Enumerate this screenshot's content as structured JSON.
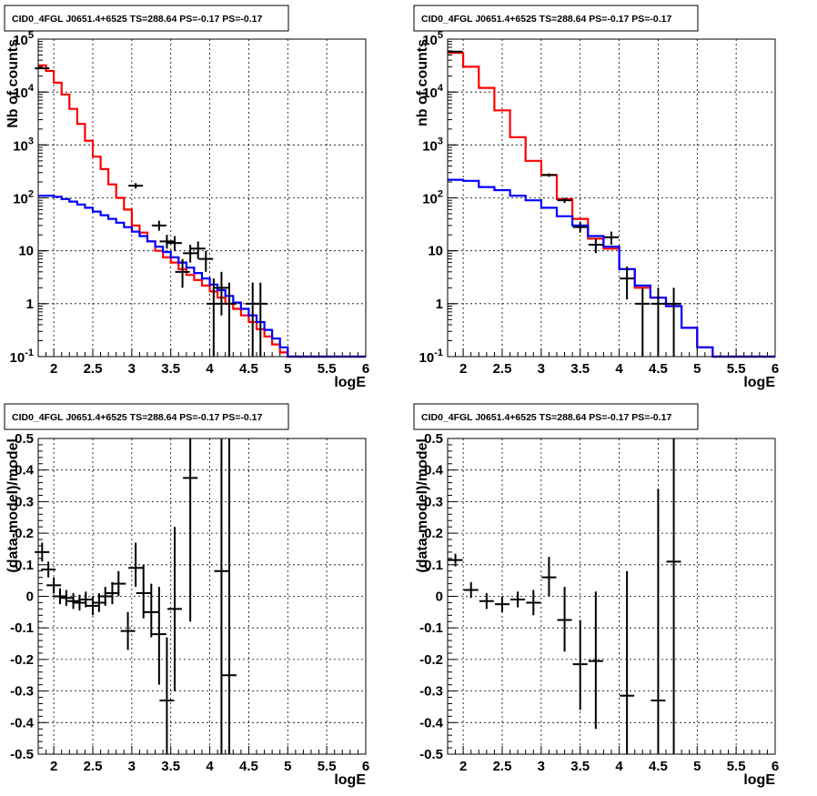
{
  "chart_data": [
    {
      "type": "line",
      "title": "CID0_4FGL J0651.4+6525 TS=288.64 PS=-0.17 PS=-0.17",
      "xlabel": "logE",
      "ylabel": "Nb of counts",
      "xlim": [
        1.8,
        6.0
      ],
      "ylim": [
        0.1,
        100000
      ],
      "yscale": "log",
      "grid": true,
      "xticks": [
        "2",
        "2.5",
        "3",
        "3.5",
        "4",
        "4.5",
        "5",
        "5.5",
        "6"
      ],
      "yticks": [
        "10^-1",
        "1",
        "10",
        "10^2",
        "10^3",
        "10^4",
        "10^5"
      ],
      "steps": [
        {
          "color": "#ff0000",
          "edges": [
            1.8,
            1.9,
            2.0,
            2.1,
            2.2,
            2.3,
            2.4,
            2.5,
            2.6,
            2.7,
            2.8,
            2.9,
            3.0,
            3.1,
            3.2,
            3.3,
            3.4,
            3.5,
            3.6,
            3.7,
            3.8,
            3.9,
            4.0,
            4.1,
            4.2,
            4.3,
            4.4,
            4.5,
            4.6,
            4.7,
            4.8,
            4.9,
            5.0,
            5.1,
            5.2,
            5.3,
            5.4,
            5.5,
            5.6,
            5.7,
            5.8,
            5.9,
            6.0
          ],
          "values": [
            32000,
            25000,
            15000,
            9000,
            4800,
            2500,
            1200,
            600,
            350,
            180,
            100,
            60,
            30,
            22,
            15,
            10,
            7.5,
            6,
            4.5,
            3.5,
            2.8,
            2.2,
            1.7,
            1.3,
            1.0,
            0.8,
            0.6,
            0.45,
            0.33,
            0.24,
            0.17,
            0.12,
            0.1,
            0.1,
            0.1,
            0.1,
            0.1,
            0.1,
            0.1,
            0.1,
            0.1,
            0.1
          ]
        },
        {
          "color": "#0000ff",
          "edges": [
            1.8,
            1.9,
            2.0,
            2.1,
            2.2,
            2.3,
            2.4,
            2.5,
            2.6,
            2.7,
            2.8,
            2.9,
            3.0,
            3.1,
            3.2,
            3.3,
            3.4,
            3.5,
            3.6,
            3.7,
            3.8,
            3.9,
            4.0,
            4.1,
            4.2,
            4.3,
            4.4,
            4.5,
            4.6,
            4.7,
            4.8,
            4.9,
            5.0,
            5.1,
            5.2,
            5.3,
            5.4,
            5.5,
            5.6,
            5.7,
            5.8,
            5.9,
            6.0
          ],
          "values": [
            110,
            110,
            105,
            95,
            85,
            75,
            65,
            55,
            47,
            40,
            34,
            28,
            23,
            19,
            15,
            12,
            9.5,
            7.5,
            6,
            4.8,
            3.8,
            3.0,
            2.3,
            1.8,
            1.4,
            1.05,
            0.8,
            0.6,
            0.45,
            0.32,
            0.22,
            0.15,
            0.1,
            0.1,
            0.1,
            0.1,
            0.1,
            0.1,
            0.1,
            0.1,
            0.1,
            0.1
          ]
        }
      ],
      "points": [
        {
          "x": 1.85,
          "y": 28000,
          "ylo": 27000,
          "yhi": 29000
        },
        {
          "x": 3.05,
          "y": 170,
          "ylo": 150,
          "yhi": 190
        },
        {
          "x": 3.35,
          "y": 30,
          "ylo": 24,
          "yhi": 37
        },
        {
          "x": 3.45,
          "y": 15,
          "ylo": 11,
          "yhi": 20
        },
        {
          "x": 3.55,
          "y": 14,
          "ylo": 10,
          "yhi": 19
        },
        {
          "x": 3.65,
          "y": 4,
          "ylo": 2,
          "yhi": 7
        },
        {
          "x": 3.75,
          "y": 9,
          "ylo": 6,
          "yhi": 13
        },
        {
          "x": 3.85,
          "y": 11,
          "ylo": 7,
          "yhi": 15
        },
        {
          "x": 3.95,
          "y": 7,
          "ylo": 4,
          "yhi": 10
        },
        {
          "x": 4.05,
          "y": 1,
          "ylo": 0.1,
          "yhi": 3
        },
        {
          "x": 4.15,
          "y": 2,
          "ylo": 0.6,
          "yhi": 4
        },
        {
          "x": 4.25,
          "y": 1,
          "ylo": 0.1,
          "yhi": 2.5
        },
        {
          "x": 4.55,
          "y": 1,
          "ylo": 0.1,
          "yhi": 2.5
        },
        {
          "x": 4.65,
          "y": 1,
          "ylo": 0.1,
          "yhi": 2.5
        }
      ]
    },
    {
      "type": "line",
      "title": "CID0_4FGL J0651.4+6525 TS=288.64 PS=-0.17 PS=-0.17",
      "xlabel": "logE",
      "ylabel": "nb of counts",
      "xlim": [
        1.8,
        6.0
      ],
      "ylim": [
        0.1,
        100000
      ],
      "yscale": "log",
      "grid": true,
      "xticks": [
        "2",
        "2.5",
        "3",
        "3.5",
        "4",
        "4.5",
        "5",
        "5.5",
        "6"
      ],
      "yticks": [
        "10^-1",
        "1",
        "10",
        "10^2",
        "10^3",
        "10^4",
        "10^5"
      ],
      "steps": [
        {
          "color": "#ff0000",
          "edges": [
            1.8,
            2.0,
            2.2,
            2.4,
            2.6,
            2.8,
            3.0,
            3.2,
            3.4,
            3.6,
            3.8,
            4.0,
            4.2,
            4.4,
            4.6,
            4.8,
            5.0,
            5.2,
            5.4,
            5.6,
            5.8,
            6.0
          ],
          "values": [
            55000,
            30000,
            12000,
            4500,
            1400,
            500,
            270,
            95,
            40,
            17,
            11,
            4.5,
            2.0,
            1.3,
            0.9,
            0.35,
            0.15,
            0.1,
            0.1,
            0.1,
            0.1
          ]
        },
        {
          "color": "#0000ff",
          "edges": [
            1.8,
            2.0,
            2.2,
            2.4,
            2.6,
            2.8,
            3.0,
            3.2,
            3.4,
            3.6,
            3.8,
            4.0,
            4.2,
            4.4,
            4.6,
            4.8,
            5.0,
            5.2,
            5.4,
            5.6,
            5.8,
            6.0
          ],
          "values": [
            220,
            210,
            160,
            140,
            110,
            90,
            65,
            45,
            30,
            19,
            12,
            4.5,
            2.2,
            1.3,
            0.9,
            0.35,
            0.15,
            0.1,
            0.1,
            0.1,
            0.1
          ]
        }
      ],
      "points": [
        {
          "x": 1.9,
          "y": 58000,
          "ylo": 56000,
          "yhi": 60000
        },
        {
          "x": 3.1,
          "y": 270,
          "ylo": 250,
          "yhi": 290
        },
        {
          "x": 3.3,
          "y": 90,
          "ylo": 80,
          "yhi": 100
        },
        {
          "x": 3.5,
          "y": 28,
          "ylo": 22,
          "yhi": 35
        },
        {
          "x": 3.7,
          "y": 13,
          "ylo": 9,
          "yhi": 17
        },
        {
          "x": 3.9,
          "y": 18,
          "ylo": 13,
          "yhi": 23
        },
        {
          "x": 4.1,
          "y": 3,
          "ylo": 1.2,
          "yhi": 5
        },
        {
          "x": 4.3,
          "y": 1,
          "ylo": 0.1,
          "yhi": 2
        },
        {
          "x": 4.5,
          "y": 1,
          "ylo": 0.1,
          "yhi": 2
        },
        {
          "x": 4.7,
          "y": 1,
          "ylo": 0.1,
          "yhi": 2
        }
      ]
    },
    {
      "type": "scatter",
      "title": "CID0_4FGL J0651.4+6525 TS=288.64 PS=-0.17 PS=-0.17",
      "xlabel": "logE",
      "ylabel": "(data-model)/model",
      "xlim": [
        1.8,
        6.0
      ],
      "ylim": [
        -0.5,
        0.5
      ],
      "yscale": "linear",
      "grid": true,
      "xticks": [
        "2",
        "2.5",
        "3",
        "3.5",
        "4",
        "4.5",
        "5",
        "5.5",
        "6"
      ],
      "yticks": [
        "-0.5",
        "-0.4",
        "-0.3",
        "-0.2",
        "-0.1",
        "0",
        "0.1",
        "0.2",
        "0.3",
        "0.4",
        "0.5"
      ],
      "points": [
        {
          "x": 1.85,
          "y": 0.14,
          "ylo": 0.11,
          "yhi": 0.17
        },
        {
          "x": 1.93,
          "y": 0.085,
          "ylo": 0.06,
          "yhi": 0.11
        },
        {
          "x": 2.0,
          "y": 0.035,
          "ylo": 0.01,
          "yhi": 0.06
        },
        {
          "x": 2.08,
          "y": 0.0,
          "ylo": -0.025,
          "yhi": 0.025
        },
        {
          "x": 2.16,
          "y": -0.005,
          "ylo": -0.03,
          "yhi": 0.02
        },
        {
          "x": 2.25,
          "y": -0.015,
          "ylo": -0.04,
          "yhi": 0.01
        },
        {
          "x": 2.33,
          "y": -0.02,
          "ylo": -0.045,
          "yhi": 0.005
        },
        {
          "x": 2.41,
          "y": -0.01,
          "ylo": -0.035,
          "yhi": 0.015
        },
        {
          "x": 2.5,
          "y": -0.03,
          "ylo": -0.06,
          "yhi": 0.0
        },
        {
          "x": 2.58,
          "y": -0.02,
          "ylo": -0.05,
          "yhi": 0.01
        },
        {
          "x": 2.66,
          "y": 0.0,
          "ylo": -0.03,
          "yhi": 0.03
        },
        {
          "x": 2.75,
          "y": 0.01,
          "ylo": -0.025,
          "yhi": 0.045
        },
        {
          "x": 2.83,
          "y": 0.04,
          "ylo": 0.0,
          "yhi": 0.08
        },
        {
          "x": 2.95,
          "y": -0.11,
          "ylo": -0.17,
          "yhi": -0.05
        },
        {
          "x": 3.05,
          "y": 0.09,
          "ylo": 0.03,
          "yhi": 0.17
        },
        {
          "x": 3.15,
          "y": 0.01,
          "ylo": -0.07,
          "yhi": 0.1
        },
        {
          "x": 3.25,
          "y": -0.05,
          "ylo": -0.13,
          "yhi": 0.04
        },
        {
          "x": 3.35,
          "y": -0.12,
          "ylo": -0.28,
          "yhi": 0.03
        },
        {
          "x": 3.45,
          "y": -0.33,
          "ylo": -0.5,
          "yhi": -0.13
        },
        {
          "x": 3.55,
          "y": -0.04,
          "ylo": -0.3,
          "yhi": 0.22
        },
        {
          "x": 3.75,
          "y": 0.375,
          "ylo": -0.08,
          "yhi": 0.5
        },
        {
          "x": 4.15,
          "y": 0.08,
          "ylo": -0.5,
          "yhi": 0.5
        },
        {
          "x": 4.25,
          "y": -0.25,
          "ylo": -0.5,
          "yhi": 0.5
        }
      ]
    },
    {
      "type": "scatter",
      "title": "CID0_4FGL J0651.4+6525 TS=288.64 PS=-0.17 PS=-0.17",
      "xlabel": "logE",
      "ylabel": "(data-model)/model",
      "xlim": [
        1.8,
        6.0
      ],
      "ylim": [
        -0.5,
        0.5
      ],
      "yscale": "linear",
      "grid": true,
      "xticks": [
        "2",
        "2.5",
        "3",
        "3.5",
        "4",
        "4.5",
        "5",
        "5.5",
        "6"
      ],
      "yticks": [
        "-0.5",
        "-0.4",
        "-0.3",
        "-0.2",
        "-0.1",
        "0",
        "0.1",
        "0.2",
        "0.3",
        "0.4",
        "0.5"
      ],
      "points": [
        {
          "x": 1.9,
          "y": 0.115,
          "ylo": 0.095,
          "yhi": 0.135
        },
        {
          "x": 2.1,
          "y": 0.02,
          "ylo": -0.005,
          "yhi": 0.045
        },
        {
          "x": 2.3,
          "y": -0.015,
          "ylo": -0.04,
          "yhi": 0.01
        },
        {
          "x": 2.5,
          "y": -0.025,
          "ylo": -0.05,
          "yhi": 0.0
        },
        {
          "x": 2.7,
          "y": -0.01,
          "ylo": -0.035,
          "yhi": 0.015
        },
        {
          "x": 2.9,
          "y": -0.02,
          "ylo": -0.06,
          "yhi": 0.02
        },
        {
          "x": 3.1,
          "y": 0.06,
          "ylo": 0.0,
          "yhi": 0.125
        },
        {
          "x": 3.3,
          "y": -0.075,
          "ylo": -0.175,
          "yhi": 0.03
        },
        {
          "x": 3.5,
          "y": -0.215,
          "ylo": -0.36,
          "yhi": -0.075
        },
        {
          "x": 3.7,
          "y": -0.205,
          "ylo": -0.42,
          "yhi": 0.015
        },
        {
          "x": 4.1,
          "y": -0.315,
          "ylo": -0.5,
          "yhi": 0.08
        },
        {
          "x": 4.5,
          "y": -0.33,
          "ylo": -0.5,
          "yhi": 0.34
        },
        {
          "x": 4.7,
          "y": 0.11,
          "ylo": -0.5,
          "yhi": 0.5
        }
      ]
    }
  ]
}
